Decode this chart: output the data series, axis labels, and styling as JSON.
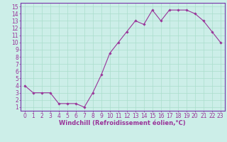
{
  "x": [
    0,
    1,
    2,
    3,
    4,
    5,
    6,
    7,
    8,
    9,
    10,
    11,
    12,
    13,
    14,
    15,
    16,
    17,
    18,
    19,
    20,
    21,
    22,
    23
  ],
  "y": [
    4.0,
    3.0,
    3.0,
    3.0,
    1.5,
    1.5,
    1.5,
    1.0,
    3.0,
    5.5,
    8.5,
    10.0,
    11.5,
    13.0,
    12.5,
    14.5,
    13.0,
    14.5,
    14.5,
    14.5,
    14.0,
    13.0,
    11.5,
    10.0
  ],
  "line_color": "#993399",
  "marker": "D",
  "marker_size": 1.8,
  "linewidth": 0.8,
  "xlabel": "Windchill (Refroidissement éolien,°C)",
  "ylabel": "",
  "xlim": [
    -0.5,
    23.5
  ],
  "ylim": [
    0.5,
    15.5
  ],
  "yticks": [
    1,
    2,
    3,
    4,
    5,
    6,
    7,
    8,
    9,
    10,
    11,
    12,
    13,
    14,
    15
  ],
  "xticks": [
    0,
    1,
    2,
    3,
    4,
    5,
    6,
    7,
    8,
    9,
    10,
    11,
    12,
    13,
    14,
    15,
    16,
    17,
    18,
    19,
    20,
    21,
    22,
    23
  ],
  "bg_color": "#cceee8",
  "grid_color": "#aaddcc",
  "axis_color": "#7733aa",
  "tick_color": "#993399",
  "xlabel_color": "#993399",
  "xlabel_fontsize": 6.0,
  "tick_fontsize": 5.5
}
